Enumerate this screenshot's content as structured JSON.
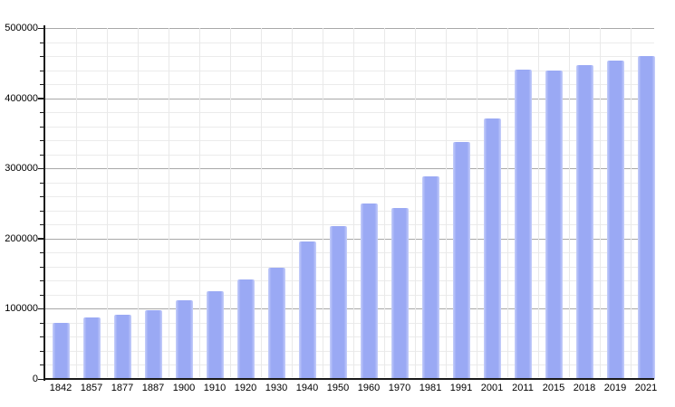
{
  "chart_data": {
    "type": "bar",
    "title": "",
    "xlabel": "",
    "ylabel": "",
    "categories": [
      "1842",
      "1857",
      "1877",
      "1887",
      "1900",
      "1910",
      "1920",
      "1930",
      "1940",
      "1950",
      "1960",
      "1970",
      "1981",
      "1991",
      "2001",
      "2011",
      "2015",
      "2018",
      "2019",
      "2021"
    ],
    "values": [
      79362,
      87803,
      91805,
      98538,
      111693,
      125057,
      141846,
      158724,
      195934,
      218375,
      249771,
      243759,
      288631,
      338250,
      370745,
      441345,
      439712,
      447182,
      453258,
      460349
    ],
    "ylim": [
      0,
      500000
    ],
    "y_major_step": 100000,
    "y_minor_step": 20000,
    "y_tick_labels": [
      "0",
      "100000",
      "200000",
      "300000",
      "400000",
      "500000"
    ],
    "grid": true,
    "legend": "none",
    "colors": {
      "bar_core": "#9aa9f4",
      "bar_edge": "#c6cffa",
      "major_grid": "#a8a8a8",
      "minor_grid": "#ebebeb",
      "vertical_grid": "#e9e9e9",
      "axis": "#1a1a1a",
      "background": "#ffffff"
    }
  }
}
